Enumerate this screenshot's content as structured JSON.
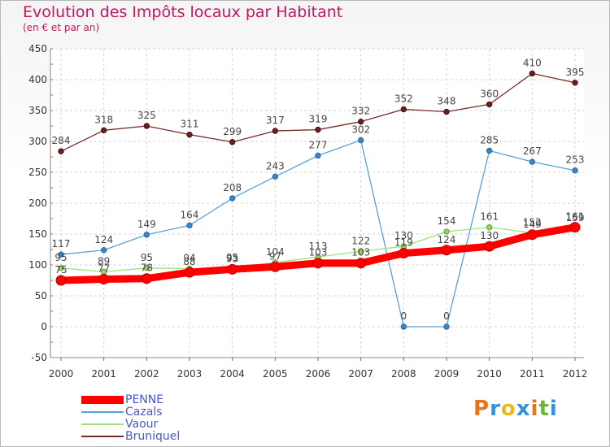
{
  "header": {
    "title": "Evolution des Impôts locaux par Habitant",
    "subtitle": "(en € et par an)"
  },
  "logo": {
    "text": "Proxiti",
    "colors": [
      "#e8741e",
      "#3a8fd8",
      "#f2b51c",
      "#3a8fd8",
      "#e8741e",
      "#6db33f",
      "#3a8fd8"
    ]
  },
  "chart_data": {
    "type": "line",
    "x": [
      2000,
      2001,
      2002,
      2003,
      2004,
      2005,
      2006,
      2007,
      2008,
      2009,
      2010,
      2011,
      2012
    ],
    "ylim": [
      -50,
      450
    ],
    "yticks": [
      -50,
      0,
      50,
      100,
      150,
      200,
      250,
      300,
      350,
      400,
      450
    ],
    "grid": true,
    "legend_position": "bottom-left",
    "series": [
      {
        "name": "PENNE",
        "color": "#ff0000",
        "values": [
          75,
          77,
          78,
          88,
          93,
          97,
          103,
          103,
          119,
          124,
          130,
          149,
          161
        ]
      },
      {
        "name": "Cazals",
        "color": "#5aa2d8",
        "values": [
          117,
          124,
          149,
          164,
          208,
          243,
          277,
          302,
          0,
          0,
          285,
          267,
          253
        ]
      },
      {
        "name": "Vaour",
        "color": "#9ae37a",
        "values": [
          95,
          89,
          95,
          94,
          95,
          104,
          113,
          122,
          130,
          154,
          161,
          152,
          159
        ]
      },
      {
        "name": "Bruniquel",
        "color": "#7a2a2a",
        "values": [
          284,
          318,
          325,
          311,
          299,
          317,
          319,
          332,
          352,
          348,
          360,
          410,
          395
        ]
      }
    ]
  }
}
